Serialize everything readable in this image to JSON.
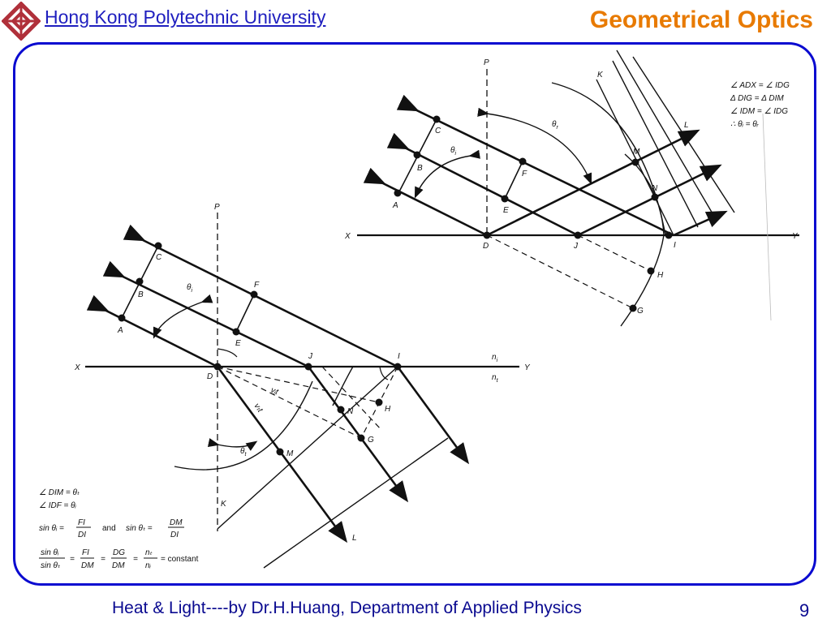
{
  "header": {
    "university": "Hong Kong Polytechnic University",
    "title": "Geometrical Optics"
  },
  "footer": {
    "text": "Heat & Light----by Dr.H.Huang, Department of Applied Physics",
    "page": "9"
  },
  "colors": {
    "title": "#e87a00",
    "link": "#1f1fbf",
    "frame": "#0a0ad0",
    "logo": "#b0303a"
  },
  "reflection": {
    "points": {
      "P": "P",
      "K": "K",
      "L": "L",
      "C": "C",
      "B": "B",
      "A": "A",
      "F": "F",
      "E": "E",
      "M": "M",
      "N": "N",
      "X": "X",
      "D": "D",
      "J": "J",
      "I": "I",
      "Y": "Y",
      "H": "H",
      "G": "G"
    },
    "theta_i": "θ",
    "theta_i_sub": "i",
    "theta_r": "θ",
    "theta_r_sub": "r",
    "proof": [
      "∠ ADX = ∠ IDG",
      "Δ DIG = Δ DIM",
      "∠ IDM = ∠ IDG",
      "∴ θᵢ = θᵣ"
    ]
  },
  "refraction": {
    "points": {
      "P": "P",
      "C": "C",
      "B": "B",
      "A": "A",
      "F": "F",
      "E": "E",
      "X": "X",
      "D": "D",
      "J": "J",
      "I": "I",
      "Y": "Y",
      "H": "H",
      "N": "N",
      "G": "G",
      "M": "M",
      "K": "K",
      "L": "L"
    },
    "ni": "n",
    "ni_sub": "i",
    "nt": "n",
    "nt_sub": "t",
    "theta_i": "θ",
    "theta_i_sub": "i",
    "theta_t": "θ",
    "theta_t_sub": "t",
    "vit": "vᵢt",
    "vtt": "vₜt",
    "eq1": "∠ DIM = θₜ",
    "eq2": "∠ IDF = θᵢ",
    "sin_i": "sin θᵢ =",
    "sin_i_num": "FI",
    "sin_i_den": "DI",
    "and": "and",
    "sin_t": "sin θₜ =",
    "sin_t_num": "DM",
    "sin_t_den": "DI",
    "ratio_num": "sin θᵢ",
    "ratio_den": "sin θₜ",
    "eqsign": "=",
    "fi": "FI",
    "dm": "DM",
    "dg": "DG",
    "dm2": "DM",
    "nt_frac": "nₜ",
    "ni_frac": "nᵢ",
    "constant": "= constant"
  }
}
